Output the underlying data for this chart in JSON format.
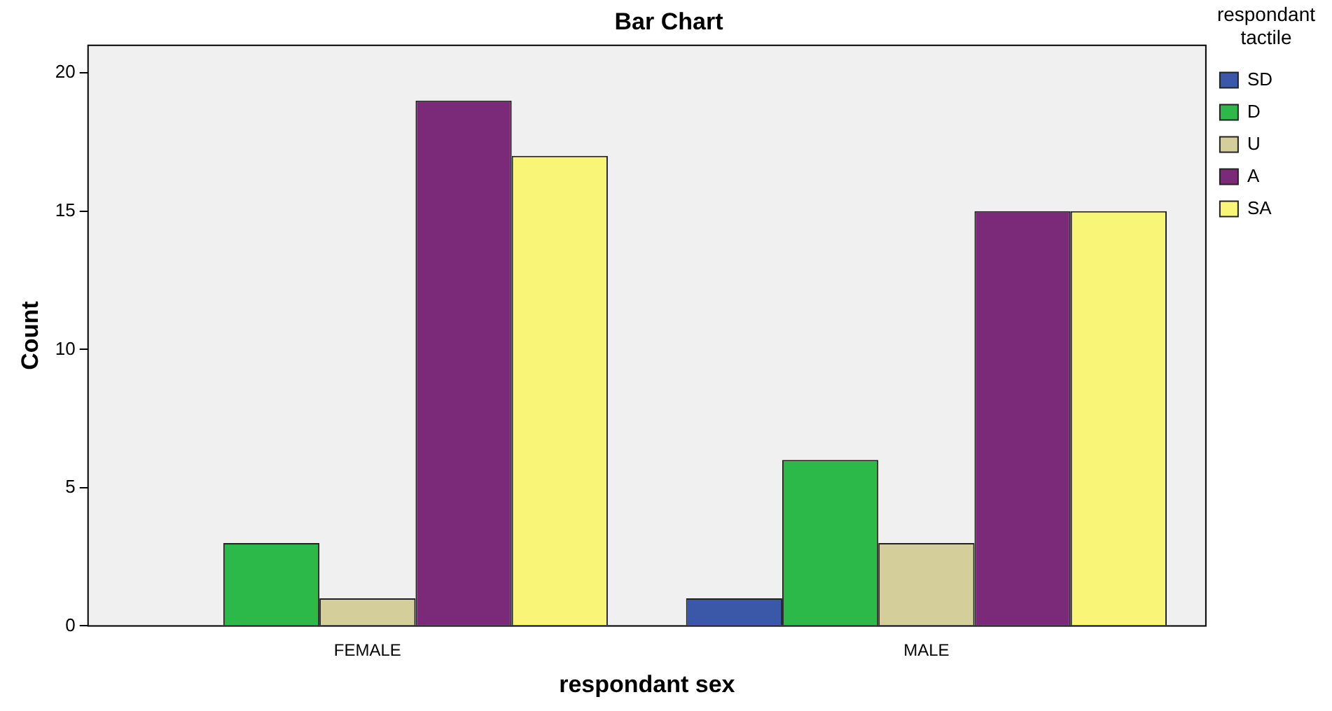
{
  "chart_data": {
    "type": "bar",
    "title": "Bar Chart",
    "xlabel": "respondant sex",
    "ylabel": "Count",
    "legend_title": "respondant tactile",
    "categories": [
      "FEMALE",
      "MALE"
    ],
    "series": [
      {
        "name": "SD",
        "color": "#3a57a8",
        "values": [
          0,
          1
        ]
      },
      {
        "name": "D",
        "color": "#2db84a",
        "values": [
          3,
          6
        ]
      },
      {
        "name": "U",
        "color": "#d4cf9a",
        "values": [
          1,
          3
        ]
      },
      {
        "name": "A",
        "color": "#7b2a7a",
        "values": [
          19,
          15
        ]
      },
      {
        "name": "SA",
        "color": "#f8f577",
        "values": [
          17,
          15
        ]
      }
    ],
    "ylim": [
      0,
      21
    ],
    "yticks": [
      0,
      5,
      10,
      15,
      20
    ],
    "grid": false,
    "legend": "top right"
  }
}
